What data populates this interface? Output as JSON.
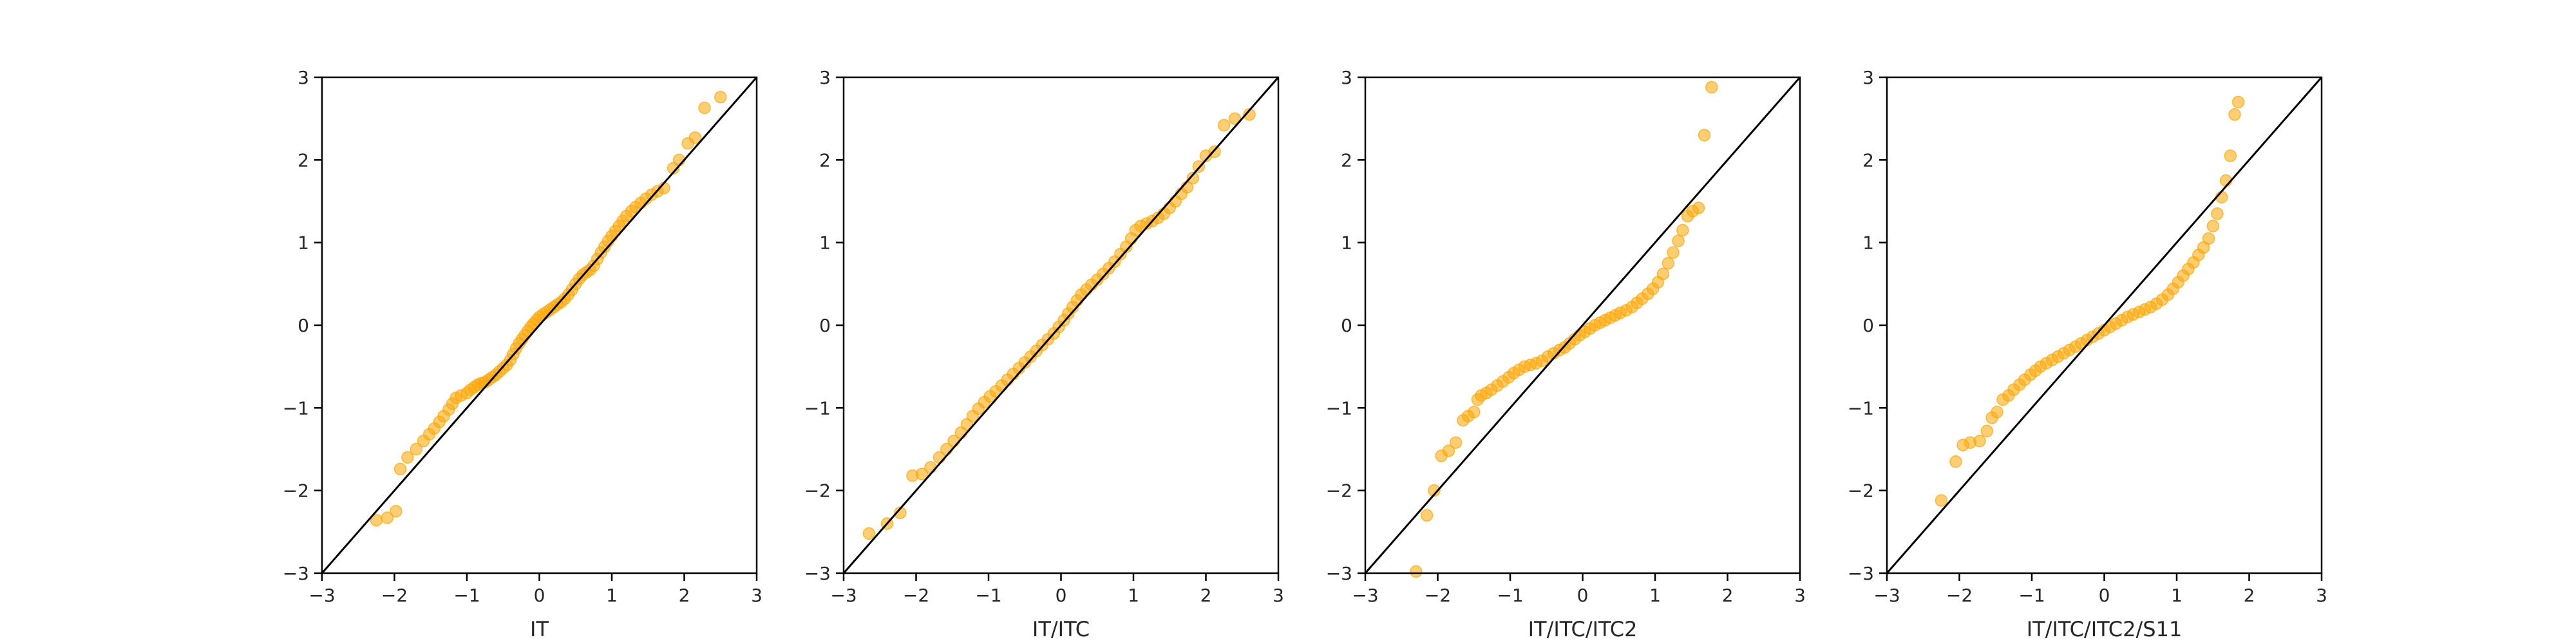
{
  "colors": {
    "points": "#FFA500",
    "reference_line": "#000000",
    "axes": "#000000"
  },
  "chart_data": [
    {
      "type": "scatter",
      "title": "",
      "xlabel": "IT",
      "ylabel": "",
      "xlim": [
        -3,
        3
      ],
      "ylim": [
        -3,
        3
      ],
      "xticks": [
        "−3",
        "−2",
        "−1",
        "0",
        "1",
        "2",
        "3"
      ],
      "yticks": [
        "−3",
        "−2",
        "−1",
        "0",
        "1",
        "2",
        "3"
      ],
      "grid": false,
      "reference_line": {
        "x": [
          -3,
          3
        ],
        "y": [
          -3,
          3
        ]
      },
      "points": [
        [
          -2.25,
          -2.36
        ],
        [
          -2.1,
          -2.33
        ],
        [
          -1.98,
          -2.25
        ],
        [
          -1.92,
          -1.74
        ],
        [
          -1.82,
          -1.6
        ],
        [
          -1.7,
          -1.5
        ],
        [
          -1.6,
          -1.4
        ],
        [
          -1.52,
          -1.32
        ],
        [
          -1.45,
          -1.25
        ],
        [
          -1.38,
          -1.17
        ],
        [
          -1.32,
          -1.1
        ],
        [
          -1.25,
          -1.02
        ],
        [
          -1.2,
          -0.95
        ],
        [
          -1.15,
          -0.88
        ],
        [
          -1.08,
          -0.85
        ],
        [
          -1.0,
          -0.82
        ],
        [
          -0.95,
          -0.78
        ],
        [
          -0.9,
          -0.75
        ],
        [
          -0.85,
          -0.72
        ],
        [
          -0.8,
          -0.7
        ],
        [
          -0.75,
          -0.69
        ],
        [
          -0.7,
          -0.66
        ],
        [
          -0.65,
          -0.63
        ],
        [
          -0.6,
          -0.6
        ],
        [
          -0.55,
          -0.56
        ],
        [
          -0.5,
          -0.52
        ],
        [
          -0.45,
          -0.48
        ],
        [
          -0.4,
          -0.42
        ],
        [
          -0.36,
          -0.35
        ],
        [
          -0.32,
          -0.28
        ],
        [
          -0.28,
          -0.22
        ],
        [
          -0.24,
          -0.17
        ],
        [
          -0.2,
          -0.12
        ],
        [
          -0.16,
          -0.07
        ],
        [
          -0.12,
          -0.02
        ],
        [
          -0.08,
          0.02
        ],
        [
          -0.04,
          0.06
        ],
        [
          0.0,
          0.1
        ],
        [
          0.05,
          0.13
        ],
        [
          0.1,
          0.16
        ],
        [
          0.15,
          0.19
        ],
        [
          0.2,
          0.22
        ],
        [
          0.25,
          0.25
        ],
        [
          0.3,
          0.28
        ],
        [
          0.35,
          0.32
        ],
        [
          0.4,
          0.37
        ],
        [
          0.45,
          0.43
        ],
        [
          0.5,
          0.5
        ],
        [
          0.55,
          0.56
        ],
        [
          0.6,
          0.61
        ],
        [
          0.65,
          0.64
        ],
        [
          0.7,
          0.67
        ],
        [
          0.75,
          0.72
        ],
        [
          0.8,
          0.8
        ],
        [
          0.85,
          0.88
        ],
        [
          0.9,
          0.95
        ],
        [
          0.95,
          1.02
        ],
        [
          1.0,
          1.08
        ],
        [
          1.05,
          1.14
        ],
        [
          1.1,
          1.2
        ],
        [
          1.15,
          1.26
        ],
        [
          1.2,
          1.32
        ],
        [
          1.27,
          1.38
        ],
        [
          1.33,
          1.43
        ],
        [
          1.4,
          1.48
        ],
        [
          1.47,
          1.53
        ],
        [
          1.55,
          1.58
        ],
        [
          1.63,
          1.62
        ],
        [
          1.72,
          1.66
        ],
        [
          1.85,
          1.9
        ],
        [
          1.93,
          2.0
        ],
        [
          2.05,
          2.2
        ],
        [
          2.15,
          2.27
        ],
        [
          2.28,
          2.63
        ],
        [
          2.5,
          2.76
        ]
      ]
    },
    {
      "type": "scatter",
      "title": "",
      "xlabel": "IT/ITC",
      "ylabel": "",
      "xlim": [
        -3,
        3
      ],
      "ylim": [
        -3,
        3
      ],
      "xticks": [
        "−3",
        "−2",
        "−1",
        "0",
        "1",
        "2",
        "3"
      ],
      "yticks": [
        "−3",
        "−2",
        "−1",
        "0",
        "1",
        "2",
        "3"
      ],
      "grid": false,
      "reference_line": {
        "x": [
          -3,
          3
        ],
        "y": [
          -3,
          3
        ]
      },
      "points": [
        [
          -2.65,
          -2.52
        ],
        [
          -2.4,
          -2.4
        ],
        [
          -2.22,
          -2.27
        ],
        [
          -2.05,
          -1.82
        ],
        [
          -1.92,
          -1.8
        ],
        [
          -1.8,
          -1.72
        ],
        [
          -1.68,
          -1.6
        ],
        [
          -1.58,
          -1.5
        ],
        [
          -1.48,
          -1.4
        ],
        [
          -1.38,
          -1.3
        ],
        [
          -1.3,
          -1.2
        ],
        [
          -1.22,
          -1.1
        ],
        [
          -1.14,
          -1.01
        ],
        [
          -1.06,
          -0.93
        ],
        [
          -0.98,
          -0.86
        ],
        [
          -0.9,
          -0.8
        ],
        [
          -0.82,
          -0.73
        ],
        [
          -0.74,
          -0.66
        ],
        [
          -0.66,
          -0.59
        ],
        [
          -0.58,
          -0.52
        ],
        [
          -0.5,
          -0.45
        ],
        [
          -0.42,
          -0.38
        ],
        [
          -0.34,
          -0.31
        ],
        [
          -0.26,
          -0.24
        ],
        [
          -0.18,
          -0.17
        ],
        [
          -0.1,
          -0.1
        ],
        [
          -0.03,
          -0.02
        ],
        [
          0.04,
          0.06
        ],
        [
          0.1,
          0.14
        ],
        [
          0.16,
          0.22
        ],
        [
          0.22,
          0.3
        ],
        [
          0.28,
          0.37
        ],
        [
          0.35,
          0.43
        ],
        [
          0.42,
          0.49
        ],
        [
          0.5,
          0.55
        ],
        [
          0.58,
          0.62
        ],
        [
          0.66,
          0.69
        ],
        [
          0.74,
          0.77
        ],
        [
          0.82,
          0.86
        ],
        [
          0.9,
          0.95
        ],
        [
          0.97,
          1.05
        ],
        [
          1.03,
          1.15
        ],
        [
          1.1,
          1.2
        ],
        [
          1.18,
          1.23
        ],
        [
          1.26,
          1.26
        ],
        [
          1.34,
          1.3
        ],
        [
          1.42,
          1.35
        ],
        [
          1.5,
          1.42
        ],
        [
          1.58,
          1.5
        ],
        [
          1.66,
          1.59
        ],
        [
          1.74,
          1.67
        ],
        [
          1.82,
          1.78
        ],
        [
          1.9,
          1.92
        ],
        [
          2.0,
          2.05
        ],
        [
          2.12,
          2.1
        ],
        [
          2.25,
          2.42
        ],
        [
          2.4,
          2.5
        ],
        [
          2.6,
          2.55
        ]
      ]
    },
    {
      "type": "scatter",
      "title": "",
      "xlabel": "IT/ITC/ITC2",
      "ylabel": "",
      "xlim": [
        -3,
        3
      ],
      "ylim": [
        -3,
        3
      ],
      "xticks": [
        "−3",
        "−2",
        "−1",
        "0",
        "1",
        "2",
        "3"
      ],
      "yticks": [
        "−3",
        "−2",
        "−1",
        "0",
        "1",
        "2",
        "3"
      ],
      "grid": false,
      "reference_line": {
        "x": [
          -3,
          3
        ],
        "y": [
          -3,
          3
        ]
      },
      "points": [
        [
          -2.3,
          -2.98
        ],
        [
          -2.15,
          -2.3
        ],
        [
          -2.05,
          -2.0
        ],
        [
          -1.95,
          -1.58
        ],
        [
          -1.85,
          -1.52
        ],
        [
          -1.75,
          -1.42
        ],
        [
          -1.65,
          -1.15
        ],
        [
          -1.58,
          -1.1
        ],
        [
          -1.5,
          -1.05
        ],
        [
          -1.45,
          -0.9
        ],
        [
          -1.4,
          -0.85
        ],
        [
          -1.33,
          -0.82
        ],
        [
          -1.26,
          -0.78
        ],
        [
          -1.18,
          -0.73
        ],
        [
          -1.1,
          -0.68
        ],
        [
          -1.02,
          -0.63
        ],
        [
          -0.95,
          -0.58
        ],
        [
          -0.88,
          -0.54
        ],
        [
          -0.8,
          -0.5
        ],
        [
          -0.72,
          -0.48
        ],
        [
          -0.64,
          -0.46
        ],
        [
          -0.56,
          -0.43
        ],
        [
          -0.48,
          -0.38
        ],
        [
          -0.4,
          -0.34
        ],
        [
          -0.32,
          -0.3
        ],
        [
          -0.25,
          -0.27
        ],
        [
          -0.18,
          -0.22
        ],
        [
          -0.11,
          -0.17
        ],
        [
          -0.04,
          -0.12
        ],
        [
          0.03,
          -0.08
        ],
        [
          0.1,
          -0.04
        ],
        [
          0.17,
          0.0
        ],
        [
          0.24,
          0.03
        ],
        [
          0.31,
          0.06
        ],
        [
          0.38,
          0.09
        ],
        [
          0.45,
          0.12
        ],
        [
          0.52,
          0.15
        ],
        [
          0.6,
          0.18
        ],
        [
          0.68,
          0.22
        ],
        [
          0.75,
          0.27
        ],
        [
          0.82,
          0.32
        ],
        [
          0.9,
          0.38
        ],
        [
          0.97,
          0.44
        ],
        [
          1.04,
          0.52
        ],
        [
          1.11,
          0.62
        ],
        [
          1.18,
          0.75
        ],
        [
          1.25,
          0.88
        ],
        [
          1.32,
          1.02
        ],
        [
          1.38,
          1.15
        ],
        [
          1.45,
          1.32
        ],
        [
          1.52,
          1.38
        ],
        [
          1.6,
          1.42
        ],
        [
          1.68,
          2.3
        ],
        [
          1.78,
          2.88
        ]
      ]
    },
    {
      "type": "scatter",
      "title": "",
      "xlabel": "IT/ITC/ITC2/S11",
      "ylabel": "",
      "xlim": [
        -3,
        3
      ],
      "ylim": [
        -3,
        3
      ],
      "xticks": [
        "−3",
        "−2",
        "−1",
        "0",
        "1",
        "2",
        "3"
      ],
      "yticks": [
        "−3",
        "−2",
        "−1",
        "0",
        "1",
        "2",
        "3"
      ],
      "grid": false,
      "reference_line": {
        "x": [
          -3,
          3
        ],
        "y": [
          -3,
          3
        ]
      },
      "points": [
        [
          -2.25,
          -2.12
        ],
        [
          -2.05,
          -1.65
        ],
        [
          -1.95,
          -1.45
        ],
        [
          -1.85,
          -1.42
        ],
        [
          -1.72,
          -1.4
        ],
        [
          -1.62,
          -1.28
        ],
        [
          -1.55,
          -1.12
        ],
        [
          -1.48,
          -1.05
        ],
        [
          -1.4,
          -0.9
        ],
        [
          -1.32,
          -0.85
        ],
        [
          -1.25,
          -0.78
        ],
        [
          -1.17,
          -0.72
        ],
        [
          -1.1,
          -0.66
        ],
        [
          -1.02,
          -0.6
        ],
        [
          -0.95,
          -0.55
        ],
        [
          -0.88,
          -0.5
        ],
        [
          -0.8,
          -0.46
        ],
        [
          -0.72,
          -0.42
        ],
        [
          -0.64,
          -0.38
        ],
        [
          -0.56,
          -0.34
        ],
        [
          -0.48,
          -0.3
        ],
        [
          -0.4,
          -0.26
        ],
        [
          -0.32,
          -0.22
        ],
        [
          -0.24,
          -0.18
        ],
        [
          -0.16,
          -0.14
        ],
        [
          -0.08,
          -0.1
        ],
        [
          0.0,
          -0.06
        ],
        [
          0.08,
          -0.02
        ],
        [
          0.16,
          0.02
        ],
        [
          0.24,
          0.06
        ],
        [
          0.32,
          0.1
        ],
        [
          0.4,
          0.13
        ],
        [
          0.48,
          0.16
        ],
        [
          0.56,
          0.19
        ],
        [
          0.64,
          0.22
        ],
        [
          0.72,
          0.26
        ],
        [
          0.8,
          0.31
        ],
        [
          0.88,
          0.37
        ],
        [
          0.95,
          0.44
        ],
        [
          1.02,
          0.52
        ],
        [
          1.09,
          0.6
        ],
        [
          1.16,
          0.68
        ],
        [
          1.23,
          0.76
        ],
        [
          1.3,
          0.85
        ],
        [
          1.37,
          0.94
        ],
        [
          1.44,
          1.05
        ],
        [
          1.5,
          1.2
        ],
        [
          1.56,
          1.35
        ],
        [
          1.62,
          1.55
        ],
        [
          1.68,
          1.75
        ],
        [
          1.74,
          2.05
        ],
        [
          1.8,
          2.55
        ],
        [
          1.85,
          2.7
        ]
      ]
    }
  ]
}
